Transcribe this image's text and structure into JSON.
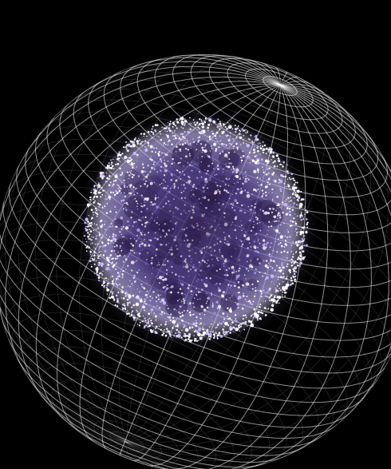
{
  "scene": {
    "subject": "particle-sphere-inside-wireframe-globe",
    "colors": {
      "background": "#000000",
      "grid_line": "#ffffff",
      "particle_core": "#ffffff",
      "particle_glow": "#c9b8ff",
      "particle_shadow": "#2a1c4a"
    }
  }
}
